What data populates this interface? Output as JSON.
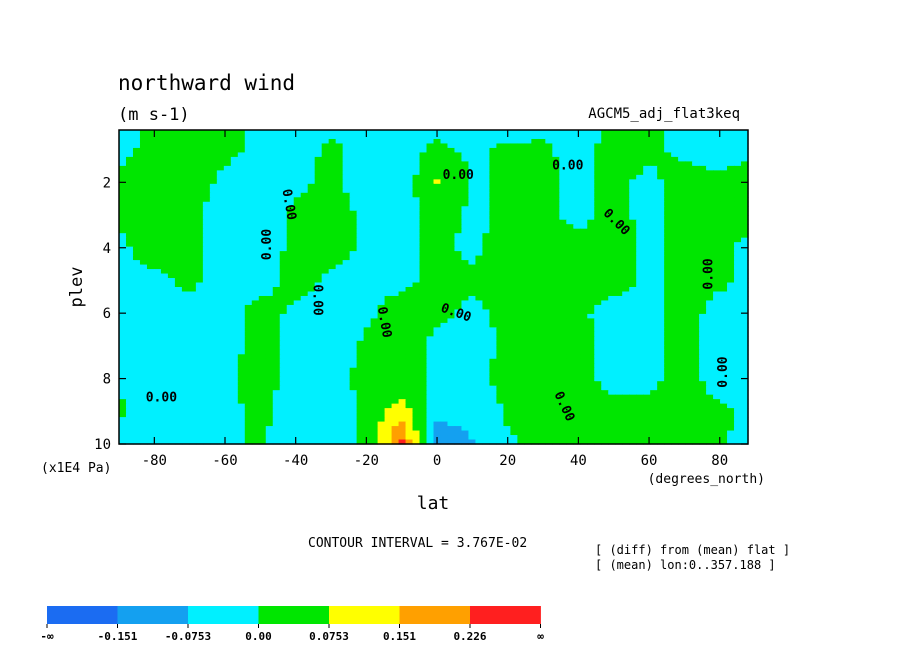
{
  "chart_data": {
    "type": "heatmap",
    "title": "northward wind",
    "subtitle": "(m s-1)",
    "run_name": "AGCM5_adj_flat3keq",
    "xlabel": "lat",
    "xunit": "(degrees_north)",
    "ylabel": "plev",
    "yunit": "(x1E4 Pa)",
    "xlim": [
      -90,
      88
    ],
    "ylim": [
      10,
      0.4
    ],
    "x_ticks": [
      -80,
      -60,
      -40,
      -20,
      0,
      20,
      40,
      60,
      80
    ],
    "y_ticks": [
      2,
      4,
      6,
      8,
      10
    ],
    "contour_interval_text": "CONTOUR INTERVAL = 3.767E-02",
    "contour_interval": 0.03767,
    "notes": [
      "[ (diff) from (mean) flat ]",
      "[ (mean) lon:0..357.188 ]"
    ],
    "zero_contour_label": "0.00",
    "legend": {
      "labels": [
        "-∞",
        "-0.151",
        "-0.0753",
        "0.00",
        "0.0753",
        "0.151",
        "0.226",
        "∞"
      ],
      "colors": [
        "#1b6cf2",
        "#14a0f0",
        "#00f0ff",
        "#00e600",
        "#ffff00",
        "#ffa000",
        "#ff1f1f"
      ]
    },
    "grid_lat": [
      -90,
      -80,
      -70,
      -60,
      -50,
      -40,
      -30,
      -20,
      -10,
      0,
      10,
      20,
      30,
      40,
      50,
      60,
      70,
      80,
      88
    ],
    "grid_plev": [
      0.4,
      1,
      2,
      3,
      4,
      5,
      6,
      7,
      8,
      9,
      10
    ],
    "values": [
      [
        -0.01,
        0.01,
        0.02,
        0.01,
        -0.01,
        -0.02,
        -0.01,
        -0.02,
        -0.01,
        -0.01,
        -0.01,
        -0.02,
        -0.01,
        -0.02,
        0.01,
        0.01,
        -0.01,
        -0.02,
        -0.01
      ],
      [
        -0.01,
        0.01,
        0.02,
        0.01,
        -0.01,
        -0.02,
        0.01,
        -0.02,
        -0.02,
        0.01,
        -0.01,
        0.01,
        0.01,
        -0.02,
        0.02,
        0.01,
        -0.01,
        -0.02,
        -0.01
      ],
      [
        0.01,
        0.01,
        0.02,
        -0.01,
        -0.02,
        -0.01,
        0.01,
        -0.02,
        -0.05,
        0.08,
        -0.01,
        0.01,
        0.01,
        -0.01,
        0.01,
        -0.01,
        0.02,
        0.01,
        0.02
      ],
      [
        0.01,
        0.02,
        0.01,
        -0.02,
        -0.02,
        0.01,
        0.02,
        -0.01,
        -0.02,
        0.02,
        -0.01,
        0.01,
        0.01,
        -0.01,
        0.01,
        -0.01,
        0.02,
        0.01,
        0.02
      ],
      [
        -0.01,
        0.02,
        0.01,
        -0.02,
        -0.02,
        0.01,
        0.02,
        -0.01,
        -0.01,
        0.01,
        -0.01,
        0.02,
        0.02,
        0.01,
        0.02,
        -0.01,
        0.02,
        0.01,
        -0.01
      ],
      [
        -0.01,
        -0.01,
        0.01,
        -0.02,
        -0.02,
        0.02,
        -0.01,
        -0.01,
        -0.01,
        0.01,
        0.01,
        0.02,
        0.02,
        0.01,
        0.02,
        -0.01,
        0.02,
        0.01,
        -0.01
      ],
      [
        -0.01,
        -0.02,
        -0.02,
        -0.02,
        0.02,
        -0.01,
        -0.02,
        -0.01,
        0.02,
        0.01,
        -0.01,
        0.01,
        0.02,
        0.01,
        -0.02,
        -0.01,
        0.02,
        -0.02,
        -0.01
      ],
      [
        -0.01,
        -0.02,
        -0.02,
        -0.02,
        0.02,
        -0.02,
        -0.03,
        0.01,
        0.02,
        -0.01,
        -0.02,
        0.01,
        0.02,
        0.01,
        -0.01,
        -0.01,
        0.02,
        -0.02,
        -0.01
      ],
      [
        -0.01,
        -0.02,
        -0.02,
        -0.01,
        0.02,
        -0.02,
        -0.01,
        0.01,
        0.02,
        -0.01,
        -0.02,
        0.02,
        0.02,
        0.01,
        -0.01,
        -0.01,
        0.02,
        -0.02,
        -0.01
      ],
      [
        0.01,
        -0.03,
        -0.04,
        -0.01,
        0.01,
        -0.02,
        -0.03,
        0.01,
        0.12,
        -0.06,
        -0.05,
        0.01,
        0.02,
        0.01,
        0.01,
        0.01,
        0.01,
        0.01,
        -0.01
      ],
      [
        -0.03,
        -0.06,
        -0.07,
        -0.02,
        0.01,
        -0.04,
        -0.08,
        0.02,
        0.24,
        -0.12,
        -0.08,
        -0.01,
        0.02,
        0.01,
        0.01,
        0.01,
        0.01,
        0.01,
        -0.02
      ]
    ]
  }
}
